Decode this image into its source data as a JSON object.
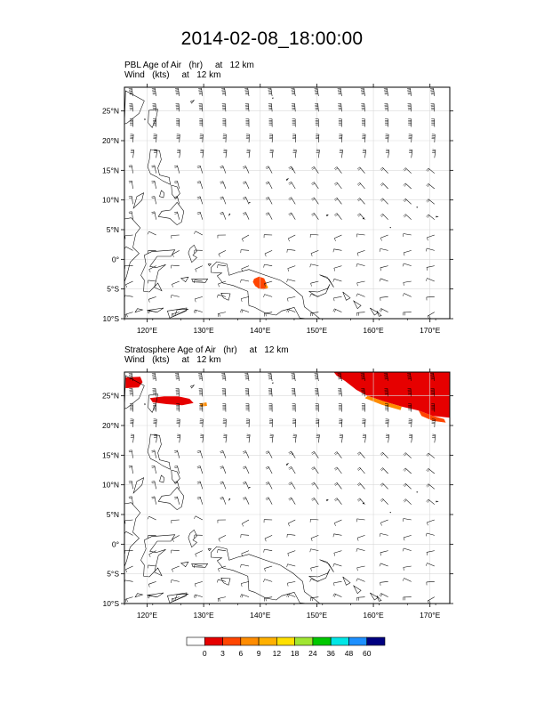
{
  "figure": {
    "title": "2014-02-08_18:00:00"
  },
  "chart_data": [
    {
      "type": "heatmap",
      "panel": "top",
      "field_label": "PBL Age of Air",
      "field_units": "(hr)",
      "level_label": "at",
      "level_value": "12 km",
      "vector_label": "Wind",
      "vector_units": "(kts)",
      "xlim": [
        116,
        173.5
      ],
      "ylim": [
        -10,
        29
      ],
      "x_ticks": [
        120,
        130,
        140,
        150,
        160,
        170
      ],
      "x_tick_labels": [
        "120°E",
        "130°E",
        "140°E",
        "150°E",
        "160°E",
        "170°E"
      ],
      "y_ticks": [
        -10,
        -5,
        0,
        5,
        10,
        15,
        20,
        25
      ],
      "y_tick_labels": [
        "10°S",
        "5°S",
        "0°",
        "5°N",
        "10°N",
        "15°N",
        "20°N",
        "25°N"
      ],
      "filled_regions": [
        {
          "value_range": "3-6",
          "color": "#ff4500",
          "points": [
            [
              138.9,
              -3.3
            ],
            [
              139.8,
              -2.9
            ],
            [
              140.7,
              -3.2
            ],
            [
              141.0,
              -3.9
            ],
            [
              141.3,
              -4.8
            ],
            [
              140.6,
              -5.1
            ],
            [
              139.7,
              -4.9
            ],
            [
              139.1,
              -4.5
            ],
            [
              138.7,
              -3.8
            ]
          ]
        },
        {
          "value_range": "6-9",
          "color": "#ff8c00",
          "points": [
            [
              141.0,
              -4.1
            ],
            [
              141.4,
              -4.7
            ],
            [
              141.1,
              -5.0
            ],
            [
              140.8,
              -4.6
            ]
          ]
        }
      ]
    },
    {
      "type": "heatmap",
      "panel": "bottom",
      "field_label": "Stratosphere Age of Air",
      "field_units": "(hr)",
      "level_label": "at",
      "level_value": "12 km",
      "vector_label": "Wind",
      "vector_units": "(kts)",
      "xlim": [
        116,
        173.5
      ],
      "ylim": [
        -10,
        29
      ],
      "x_ticks": [
        120,
        130,
        140,
        150,
        160,
        170
      ],
      "x_tick_labels": [
        "120°E",
        "130°E",
        "140°E",
        "150°E",
        "160°E",
        "170°E"
      ],
      "y_ticks": [
        -10,
        -5,
        0,
        5,
        10,
        15,
        20,
        25
      ],
      "y_tick_labels": [
        "10°S",
        "5°S",
        "0°",
        "5°N",
        "10°N",
        "15°N",
        "20°N",
        "25°N"
      ],
      "filled_regions": [
        {
          "value_range": "0-3",
          "color": "#e60000",
          "points": [
            [
              153,
              29
            ],
            [
              173.5,
              29
            ],
            [
              173.5,
              21.3
            ],
            [
              170.5,
              21.6
            ],
            [
              168,
              22.5
            ],
            [
              165,
              23.2
            ],
            [
              162,
              24.0
            ],
            [
              159,
              25.0
            ],
            [
              157,
              26.0
            ],
            [
              155,
              27.5
            ],
            [
              153.5,
              28.4
            ]
          ]
        },
        {
          "value_range": "0-3",
          "color": "#e60000",
          "points": [
            [
              116.2,
              26.3
            ],
            [
              118.5,
              26.4
            ],
            [
              119.2,
              27.3
            ],
            [
              118.8,
              28.2
            ],
            [
              116.2,
              28.1
            ]
          ]
        },
        {
          "value_range": "0-3",
          "color": "#e60000",
          "points": [
            [
              120.5,
              24.6
            ],
            [
              123,
              24.9
            ],
            [
              125.5,
              24.9
            ],
            [
              127.5,
              24.5
            ],
            [
              128.2,
              23.8
            ],
            [
              126.2,
              23.4
            ],
            [
              123.5,
              23.6
            ],
            [
              121,
              23.9
            ]
          ]
        },
        {
          "value_range": "3-6",
          "color": "#ff4500",
          "points": [
            [
              168,
              22.5
            ],
            [
              170.5,
              21.6
            ],
            [
              172.5,
              21.1
            ],
            [
              172.8,
              20.5
            ],
            [
              170.5,
              20.8
            ],
            [
              168.5,
              21.6
            ]
          ]
        },
        {
          "value_range": "6-9",
          "color": "#ff8c00",
          "points": [
            [
              159,
              25.0
            ],
            [
              162,
              24.0
            ],
            [
              165,
              23.2
            ],
            [
              164.8,
              22.6
            ],
            [
              161.5,
              23.5
            ],
            [
              158.5,
              24.6
            ]
          ]
        },
        {
          "value_range": "6-9",
          "color": "#ff8c00",
          "points": [
            [
              129.3,
              23.7
            ],
            [
              130.5,
              23.9
            ],
            [
              130.6,
              23.3
            ],
            [
              129.5,
              23.2
            ]
          ]
        }
      ]
    }
  ],
  "colorbar": {
    "labels": [
      "0",
      "3",
      "6",
      "9",
      "12",
      "18",
      "24",
      "36",
      "48",
      "60"
    ],
    "colors": [
      "#ffffff",
      "#e60000",
      "#ff4500",
      "#ff8c00",
      "#ffb000",
      "#ffe000",
      "#a0e632",
      "#00c800",
      "#00e6e6",
      "#1e90ff",
      "#000080"
    ]
  }
}
